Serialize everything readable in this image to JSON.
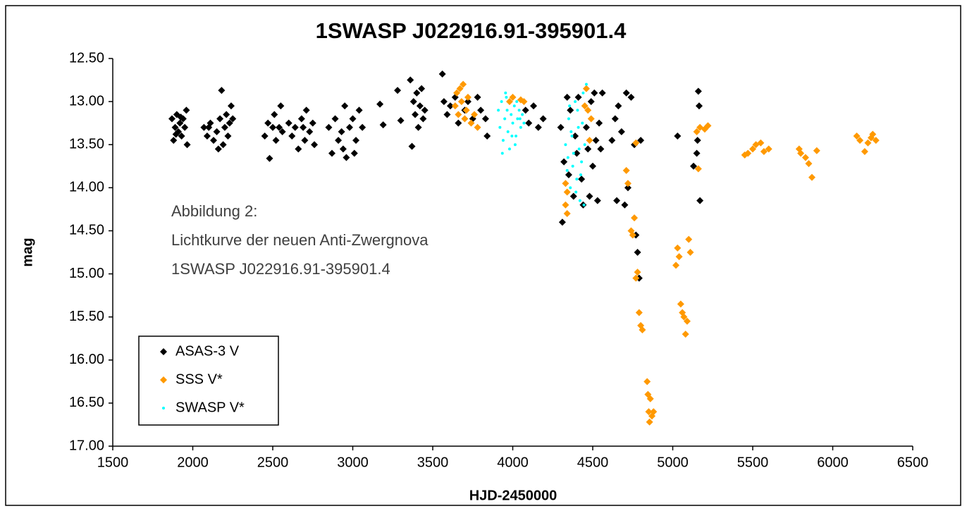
{
  "chart_data": {
    "type": "scatter",
    "title": "1SWASP J022916.91-395901.4",
    "x_label": "HJD-2450000",
    "y_label": "mag",
    "annotation": [
      "Abbildung 2:",
      "Lichtkurve der neuen Anti-Zwergnova",
      "1SWASP J022916.91-395901.4"
    ],
    "xlim": [
      1500,
      6500
    ],
    "xticks": [
      1500,
      2000,
      2500,
      3000,
      3500,
      4000,
      4500,
      5000,
      5500,
      6000,
      6500
    ],
    "ylim": [
      12.5,
      17
    ],
    "y_inverted": true,
    "yticks": [
      {
        "value": 12.5,
        "label": "12.50"
      },
      {
        "value": 13,
        "label": "13.00"
      },
      {
        "value": 13.5,
        "label": "13.50"
      },
      {
        "value": 14,
        "label": "14.00"
      },
      {
        "value": 14.5,
        "label": "14.50"
      },
      {
        "value": 15,
        "label": "15.00"
      },
      {
        "value": 15.5,
        "label": "15.50"
      },
      {
        "value": 16,
        "label": "16.00"
      },
      {
        "value": 16.5,
        "label": "16.50"
      },
      {
        "value": 17,
        "label": "17.00"
      }
    ],
    "grid": false,
    "legend": "lower left",
    "series": [
      {
        "name": "ASAS-3 V",
        "color": "#000000",
        "marker": "diamond",
        "x": [
          1870,
          1880,
          1890,
          1900,
          1910,
          1920,
          1930,
          1940,
          1950,
          1960,
          1965,
          1895,
          1925,
          2070,
          2090,
          2110,
          2130,
          2150,
          2170,
          2180,
          2190,
          2200,
          2210,
          2220,
          2230,
          2240,
          2250,
          2160,
          2100,
          2450,
          2470,
          2480,
          2500,
          2510,
          2520,
          2540,
          2550,
          2560,
          2600,
          2620,
          2640,
          2660,
          2680,
          2700,
          2710,
          2730,
          2750,
          2760,
          2690,
          2850,
          2870,
          2890,
          2910,
          2930,
          2950,
          2960,
          2980,
          3000,
          3020,
          3040,
          3060,
          2940,
          3010,
          3170,
          3190,
          3280,
          3300,
          3360,
          3370,
          3380,
          3390,
          3400,
          3410,
          3420,
          3430,
          3440,
          3450,
          3560,
          3570,
          3590,
          3610,
          3640,
          3660,
          3700,
          3720,
          3750,
          3780,
          3800,
          3830,
          3840,
          4080,
          4100,
          4130,
          4160,
          4190,
          4300,
          4310,
          4320,
          4340,
          4350,
          4360,
          4380,
          4390,
          4400,
          4410,
          4430,
          4440,
          4460,
          4470,
          4480,
          4490,
          4500,
          4510,
          4520,
          4530,
          4540,
          4550,
          4560,
          4620,
          4640,
          4650,
          4660,
          4680,
          4700,
          4710,
          4720,
          4740,
          4760,
          4770,
          4780,
          4790,
          4800,
          5030,
          5130,
          5150,
          5160,
          5165,
          5170,
          5155
        ],
        "values": [
          13.2,
          13.45,
          13.3,
          13.15,
          13.35,
          13.25,
          13.4,
          13.2,
          13.3,
          13.1,
          13.5,
          13.38,
          13.18,
          13.3,
          13.4,
          13.25,
          13.45,
          13.35,
          13.2,
          12.87,
          13.5,
          13.3,
          13.15,
          13.4,
          13.25,
          13.05,
          13.2,
          13.55,
          13.3,
          13.4,
          13.25,
          13.66,
          13.3,
          13.15,
          13.45,
          13.3,
          13.05,
          13.35,
          13.25,
          13.4,
          13.3,
          13.55,
          13.2,
          13.45,
          13.1,
          13.35,
          13.25,
          13.5,
          13.3,
          13.3,
          13.6,
          13.2,
          13.45,
          13.35,
          13.05,
          13.65,
          13.3,
          13.2,
          13.45,
          13.1,
          13.3,
          13.55,
          13.6,
          13.03,
          13.27,
          12.87,
          13.22,
          12.75,
          13.52,
          13.0,
          13.15,
          12.9,
          13.3,
          13.05,
          12.85,
          13.2,
          13.1,
          12.68,
          13.0,
          13.15,
          13.05,
          12.95,
          13.25,
          13.1,
          13.0,
          13.2,
          12.95,
          13.1,
          13.2,
          13.4,
          13.1,
          13.25,
          13.05,
          13.3,
          13.2,
          13.3,
          14.4,
          13.7,
          12.95,
          13.85,
          13.1,
          14.1,
          13.4,
          13.6,
          12.95,
          13.9,
          14.2,
          13.3,
          13.55,
          14.1,
          13.0,
          13.75,
          12.9,
          13.45,
          14.15,
          13.25,
          13.55,
          12.9,
          13.45,
          13.2,
          14.15,
          13.05,
          13.35,
          14.2,
          12.9,
          14.0,
          12.95,
          13.5,
          14.55,
          14.75,
          15.05,
          13.45,
          13.4,
          13.75,
          13.6,
          12.88,
          13.05,
          14.15,
          13.45
        ]
      },
      {
        "name": "SSS V*",
        "color": "#ff9900",
        "marker": "diamond",
        "x": [
          3640,
          3650,
          3660,
          3670,
          3680,
          3690,
          3700,
          3710,
          3720,
          3740,
          3760,
          3780,
          3980,
          4000,
          4050,
          4070,
          4330,
          4330,
          4340,
          4340,
          4450,
          4460,
          4470,
          4480,
          4490,
          4710,
          4720,
          4740,
          4750,
          4760,
          4770,
          4770,
          4780,
          4790,
          4800,
          4810,
          4840,
          4845,
          4850,
          4855,
          4860,
          4870,
          4880,
          5020,
          5030,
          5040,
          5050,
          5060,
          5070,
          5080,
          5090,
          5100,
          5110,
          5150,
          5160,
          5170,
          5200,
          5220,
          5450,
          5470,
          5500,
          5520,
          5550,
          5570,
          5600,
          5790,
          5800,
          5830,
          5850,
          5870,
          5900,
          6150,
          6170,
          6200,
          6220,
          6240,
          6250,
          6270
        ],
        "values": [
          13.05,
          12.9,
          13.15,
          12.85,
          13.0,
          12.8,
          13.2,
          13.1,
          12.95,
          13.25,
          13.15,
          13.3,
          13.0,
          12.95,
          12.98,
          13.0,
          13.95,
          14.2,
          14.3,
          14.05,
          13.05,
          12.85,
          13.1,
          13.45,
          13.2,
          13.8,
          13.95,
          14.5,
          14.55,
          14.35,
          13.48,
          15.05,
          14.98,
          15.45,
          15.6,
          15.65,
          16.25,
          16.4,
          16.6,
          16.72,
          16.45,
          16.65,
          16.6,
          14.9,
          14.7,
          14.8,
          15.35,
          15.45,
          15.5,
          15.7,
          15.55,
          14.6,
          14.75,
          13.35,
          13.78,
          13.3,
          13.32,
          13.28,
          13.62,
          13.6,
          13.55,
          13.5,
          13.48,
          13.58,
          13.55,
          13.55,
          13.6,
          13.65,
          13.72,
          13.88,
          13.57,
          13.4,
          13.45,
          13.58,
          13.48,
          13.42,
          13.38,
          13.45
        ]
      },
      {
        "name": "SWASP V*",
        "color": "#00ffff",
        "marker": "dot",
        "x": [
          3910,
          3920,
          3930,
          3940,
          3950,
          3960,
          3970,
          3980,
          3990,
          4000,
          4010,
          4020,
          4030,
          4040,
          4050,
          4060,
          4070,
          3935,
          3955,
          4015,
          3965,
          3995,
          4025,
          4045,
          4330,
          4340,
          4350,
          4360,
          4370,
          4380,
          4390,
          4400,
          4410,
          4420,
          4430,
          4440,
          4450,
          4460,
          4355,
          4375,
          4395,
          4415,
          4435,
          4345,
          4365,
          4425,
          4445,
          4405
        ],
        "values": [
          13.1,
          13.3,
          13.0,
          13.45,
          13.2,
          12.95,
          13.35,
          13.55,
          13.15,
          13.25,
          13.05,
          13.4,
          13.2,
          13.1,
          13.3,
          13.15,
          13.25,
          13.6,
          12.9,
          13.5,
          13.1,
          13.4,
          13.0,
          13.2,
          13.5,
          13.8,
          13.2,
          14.0,
          13.4,
          13.6,
          13.0,
          13.9,
          13.3,
          14.15,
          13.7,
          12.9,
          13.5,
          12.8,
          13.05,
          13.75,
          14.05,
          13.55,
          13.25,
          13.65,
          13.35,
          13.85,
          14.2,
          13.1
        ]
      }
    ]
  }
}
